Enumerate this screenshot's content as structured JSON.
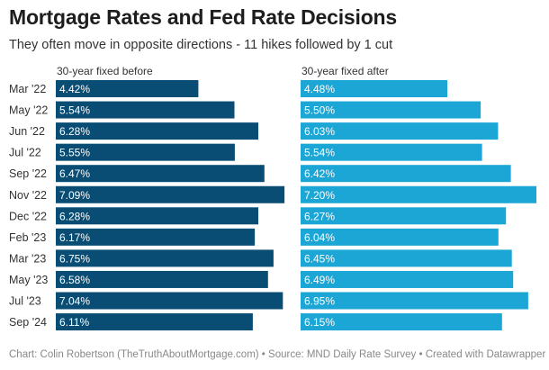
{
  "title": "Mortgage Rates and Fed Rate Decisions",
  "subtitle": "They often move in opposite directions - 11 hikes followed by 1 cut",
  "footer": "Chart: Colin Robertson (TheTruthAboutMortgage.com) • Source: MND Daily Rate Survey • Created with Datawrapper",
  "colors": {
    "before": "#0a4d74",
    "after": "#1ba6d6"
  },
  "chart_data": {
    "type": "bar",
    "orientation": "horizontal",
    "categories": [
      "Mar '22",
      "May '22",
      "Jun '22",
      "Jul '22",
      "Sep '22",
      "Nov '22",
      "Dec '22",
      "Feb '23",
      "Mar '23",
      "May '23",
      "Jul '23",
      "Sep '24"
    ],
    "series": [
      {
        "name": "30-year fixed before",
        "values": [
          4.42,
          5.54,
          6.28,
          5.55,
          6.47,
          7.09,
          6.28,
          6.17,
          6.75,
          6.58,
          7.04,
          6.11
        ],
        "labels": [
          "4.42%",
          "5.54%",
          "6.28%",
          "5.55%",
          "6.47%",
          "7.09%",
          "6.28%",
          "6.17%",
          "6.75%",
          "6.58%",
          "7.04%",
          "6.11%"
        ]
      },
      {
        "name": "30-year fixed after",
        "values": [
          4.48,
          5.5,
          6.03,
          5.54,
          6.42,
          7.2,
          6.27,
          6.04,
          6.45,
          6.49,
          6.95,
          6.15
        ],
        "labels": [
          "4.48%",
          "5.50%",
          "6.03%",
          "5.54%",
          "6.42%",
          "7.20%",
          "6.27%",
          "6.04%",
          "6.45%",
          "6.49%",
          "6.95%",
          "6.15%"
        ]
      }
    ],
    "xlim": [
      0,
      7.2
    ]
  }
}
